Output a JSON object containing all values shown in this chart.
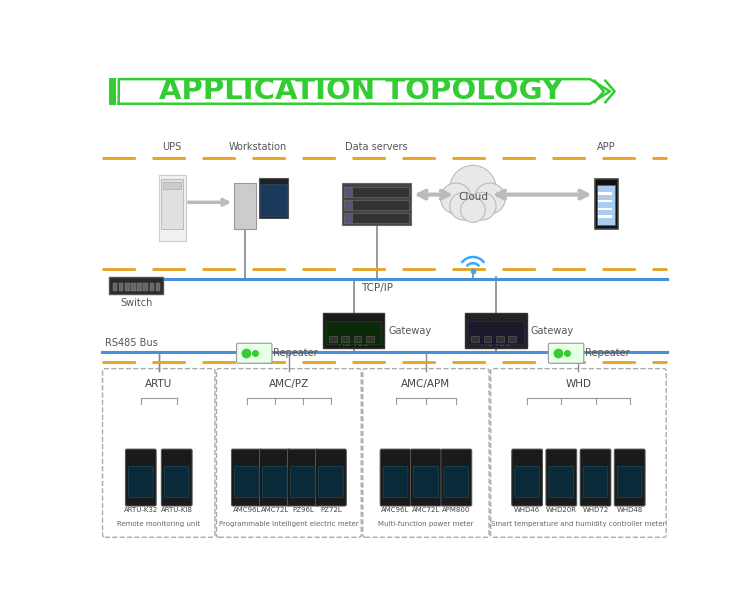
{
  "title": "APPLICATION TOPOLOGY",
  "title_color": "#33cc33",
  "bg_color": "#ffffff",
  "orange_dash": "#e8a020",
  "blue_line": "#4a90d9",
  "green_bar": "#33cc33",
  "group_labels": [
    "ARTU",
    "AMC/PZ",
    "AMC/APM",
    "WHD"
  ],
  "group_subtitles": [
    "Remote monitoring unit",
    "Programmable intelligent electric meter",
    "Multi-function power meter",
    "Smart temperature and humidity controller meter"
  ],
  "device_labels_1": [
    "ARTU-K32",
    "ARTU-KI8"
  ],
  "device_labels_2": [
    "AMC96L",
    "AMC72L",
    "PZ96L",
    "PZ72L"
  ],
  "device_labels_3": [
    "AMC96L",
    "AMC72L",
    "APM800"
  ],
  "device_labels_4": [
    "WHD46",
    "WHD20R",
    "WHD72",
    "WHD48"
  ]
}
